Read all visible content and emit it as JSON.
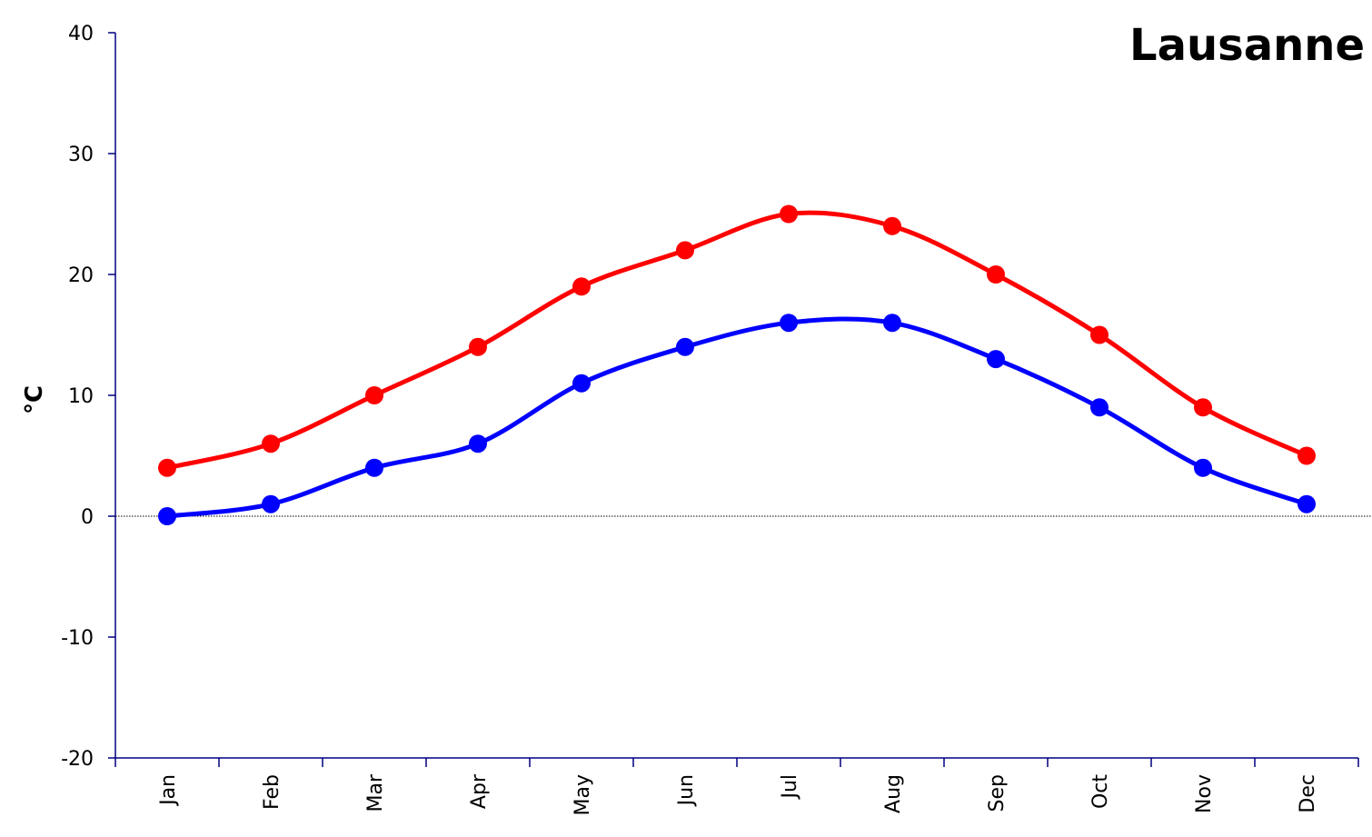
{
  "chart_data": {
    "type": "line",
    "title": "Lausanne",
    "xlabel": "",
    "ylabel": "°C",
    "categories": [
      "Jan",
      "Feb",
      "Mar",
      "Apr",
      "May",
      "Jun",
      "Jul",
      "Aug",
      "Sep",
      "Oct",
      "Nov",
      "Dec"
    ],
    "ylim": [
      -20,
      40
    ],
    "yticks": [
      -20,
      -10,
      0,
      10,
      20,
      30,
      40
    ],
    "zero_line": true,
    "grid": false,
    "legend": "none",
    "smooth": true,
    "series": [
      {
        "color": "#ff0000",
        "values": [
          4,
          6,
          10,
          14,
          19,
          22,
          25,
          24,
          20,
          15,
          9,
          5
        ]
      },
      {
        "color": "#0000ff",
        "values": [
          0,
          1,
          4,
          6,
          11,
          14,
          16,
          16,
          13,
          9,
          4,
          1
        ]
      }
    ]
  }
}
